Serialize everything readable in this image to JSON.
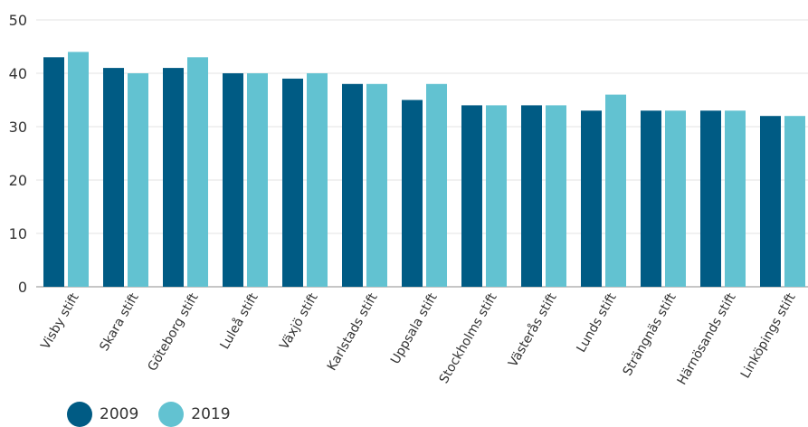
{
  "chart_data": {
    "type": "bar",
    "title": "",
    "xlabel": "",
    "ylabel": "",
    "ylim": [
      0,
      50
    ],
    "yticks": [
      "0",
      "10",
      "20",
      "30",
      "40",
      "50"
    ],
    "grid": true,
    "legend_position": "bottom-left",
    "categories": [
      "Visby stift",
      "Skara stift",
      "Göteborg stift",
      "Luleå stift",
      "Växjö stift",
      "Karlstads stift",
      "Uppsala stift",
      "Stockholms stift",
      "Västerås stift",
      "Lunds stift",
      "Strängnäs stift",
      "Härnösands stift",
      "Linköpings stift"
    ],
    "series": [
      {
        "name": "2009",
        "color": "#005b84",
        "values": [
          43,
          41,
          41,
          40,
          39,
          38,
          35,
          34,
          34,
          33,
          33,
          33,
          32
        ]
      },
      {
        "name": "2019",
        "color": "#62c2d1",
        "values": [
          44,
          40,
          43,
          40,
          40,
          38,
          38,
          34,
          34,
          36,
          33,
          33,
          32
        ]
      }
    ]
  }
}
